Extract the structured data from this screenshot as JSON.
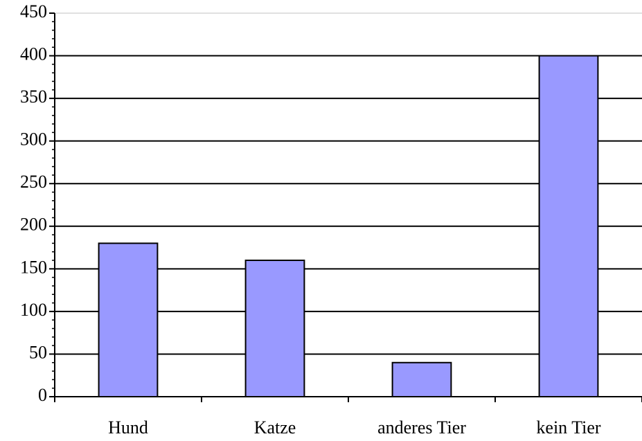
{
  "chart_data": {
    "type": "bar",
    "categories": [
      "Hund",
      "Katze",
      "anderes Tier",
      "kein Tier"
    ],
    "values": [
      180,
      160,
      40,
      400
    ],
    "color": "#9999ff",
    "ylim": [
      0,
      450
    ],
    "yticks": [
      0,
      50,
      100,
      150,
      200,
      250,
      300,
      350,
      400,
      450
    ],
    "grid": true
  }
}
